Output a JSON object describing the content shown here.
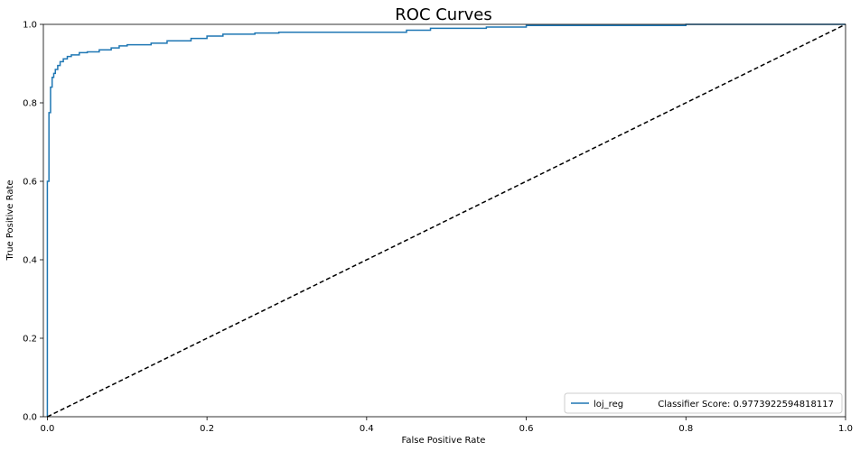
{
  "chart_data": {
    "type": "line",
    "title": "ROC Curves",
    "xlabel": "False Positive Rate",
    "ylabel": "True Positive Rate",
    "xlim": [
      0,
      1
    ],
    "ylim": [
      0,
      1
    ],
    "xticks": [
      "0.0",
      "0.2",
      "0.4",
      "0.6",
      "0.8",
      "1.0"
    ],
    "yticks": [
      "0.0",
      "0.2",
      "0.4",
      "0.6",
      "0.8",
      "1.0"
    ],
    "grid": false,
    "legend_position": "lower-right",
    "series": [
      {
        "name": "loj_reg",
        "legend_label": "loj_reg            Classifier Score: 0.9773922594818117",
        "color": "#1f77b4",
        "style": "step",
        "x": [
          0.0,
          0.0,
          0.002,
          0.002,
          0.004,
          0.004,
          0.006,
          0.006,
          0.008,
          0.008,
          0.01,
          0.01,
          0.013,
          0.013,
          0.016,
          0.016,
          0.02,
          0.02,
          0.025,
          0.025,
          0.03,
          0.03,
          0.04,
          0.04,
          0.05,
          0.05,
          0.065,
          0.065,
          0.08,
          0.08,
          0.09,
          0.09,
          0.1,
          0.1,
          0.13,
          0.13,
          0.15,
          0.15,
          0.18,
          0.18,
          0.2,
          0.2,
          0.22,
          0.22,
          0.26,
          0.26,
          0.29,
          0.29,
          0.45,
          0.45,
          0.48,
          0.48,
          0.55,
          0.55,
          0.6,
          0.6,
          0.8,
          0.8,
          1.0
        ],
        "y": [
          0.0,
          0.6,
          0.6,
          0.775,
          0.775,
          0.84,
          0.84,
          0.865,
          0.865,
          0.875,
          0.875,
          0.885,
          0.885,
          0.895,
          0.895,
          0.905,
          0.905,
          0.912,
          0.912,
          0.918,
          0.918,
          0.922,
          0.922,
          0.928,
          0.928,
          0.93,
          0.93,
          0.935,
          0.935,
          0.94,
          0.94,
          0.945,
          0.945,
          0.948,
          0.948,
          0.952,
          0.952,
          0.958,
          0.958,
          0.964,
          0.964,
          0.97,
          0.97,
          0.975,
          0.975,
          0.978,
          0.978,
          0.98,
          0.98,
          0.985,
          0.985,
          0.99,
          0.99,
          0.993,
          0.993,
          0.997,
          0.997,
          1.0,
          1.0
        ]
      },
      {
        "name": "",
        "color": "#000000",
        "style": "dashed",
        "x": [
          0,
          1
        ],
        "y": [
          0,
          1
        ]
      }
    ]
  }
}
